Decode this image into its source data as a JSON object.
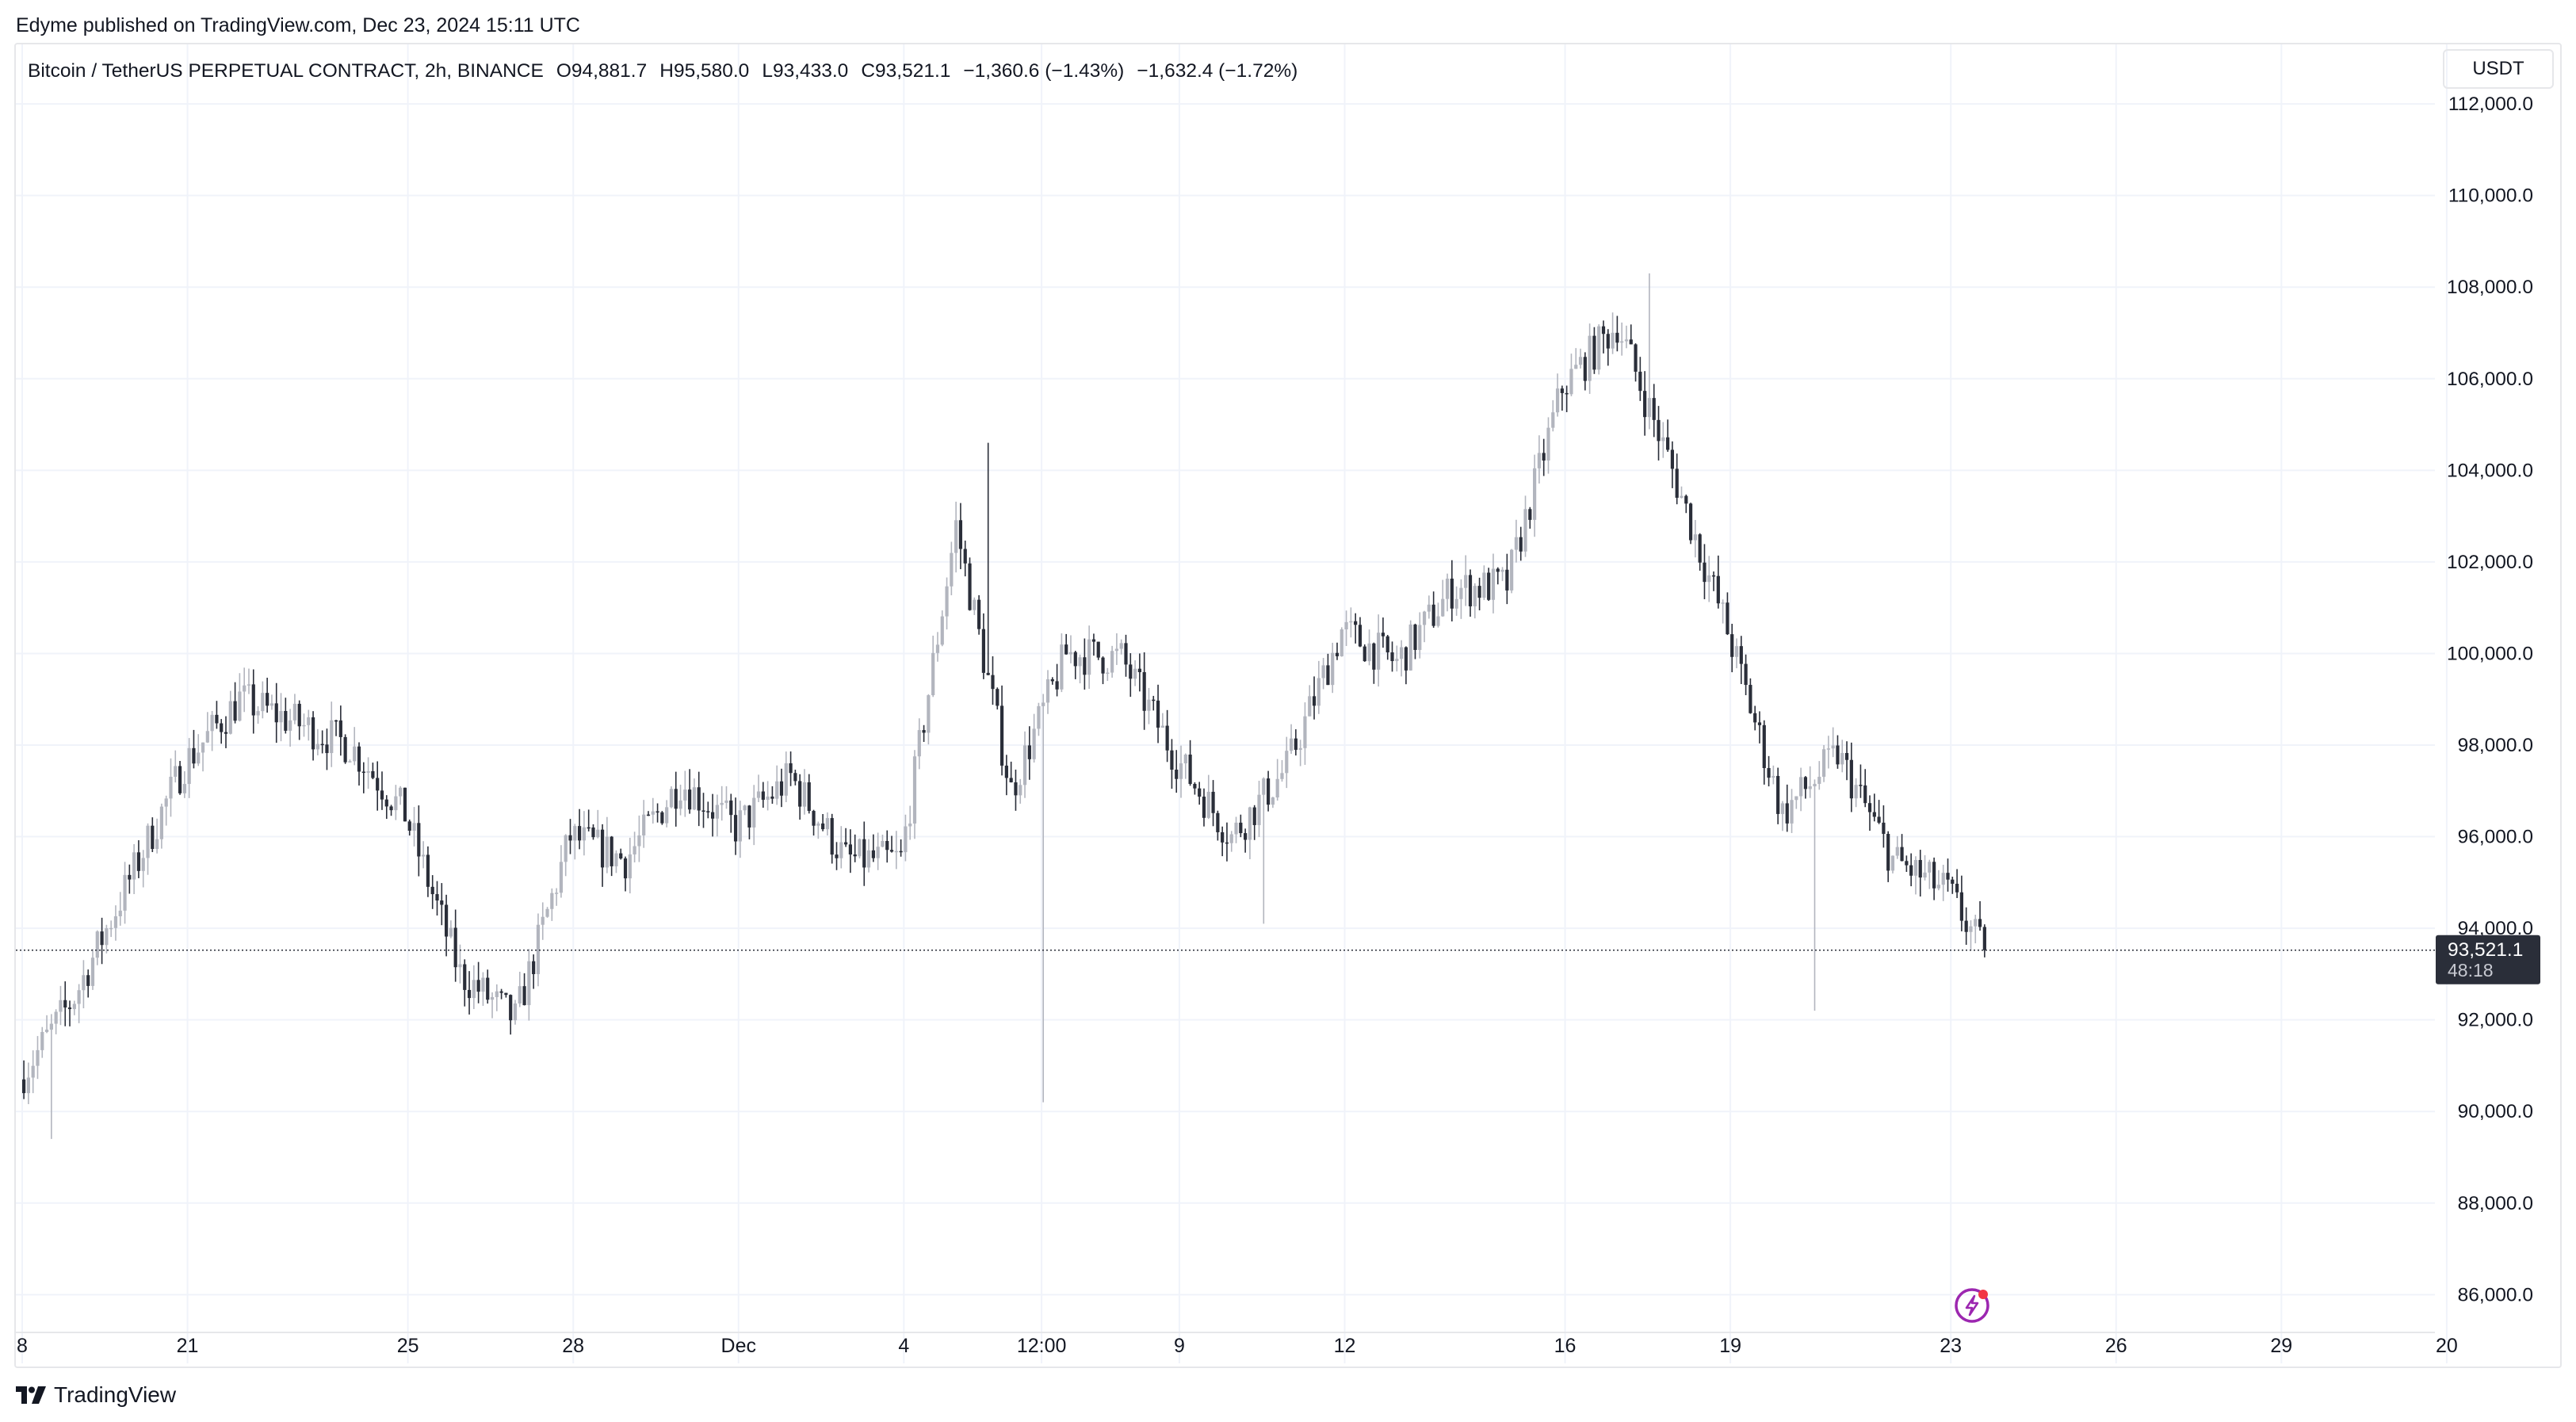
{
  "header": {
    "publisher": "Edyme published on TradingView.com, Dec 23, 2024 15:11 UTC",
    "currency": "USDT"
  },
  "legend": {
    "symbol": "Bitcoin / TetherUS PERPETUAL CONTRACT, 2h, BINANCE",
    "open": "O94,881.7",
    "high": "H95,580.0",
    "low": "L93,433.0",
    "close": "C93,521.1",
    "change": "−1,360.6 (−1.43%)",
    "change2": "−1,632.4 (−1.72%)"
  },
  "footer": {
    "brand": "TradingView"
  },
  "colors": {
    "up_candle": "#b2b5be",
    "down_candle": "#2a2e39",
    "grid": "#f0f3fa",
    "price_label_bg": "#2a2e39",
    "alert_icon": "#9c27b0",
    "alert_dot": "#f23645"
  },
  "chart_data": {
    "type": "candlestick",
    "ylim": [
      84500,
      113300
    ],
    "y_ticks": [
      "112,000.0",
      "110,000.0",
      "108,000.0",
      "106,000.0",
      "104,000.0",
      "102,000.0",
      "100,000.0",
      "98,000.0",
      "96,000.0",
      "94,000.0",
      "92,000.0",
      "90,000.0",
      "88,000.0",
      "86,000.0"
    ],
    "y_tick_values": [
      112000,
      110000,
      108000,
      106000,
      104000,
      102000,
      100000,
      98000,
      96000,
      94000,
      92000,
      90000,
      88000,
      86000
    ],
    "x_ticks": [
      "8",
      "21",
      "25",
      "28",
      "Dec",
      "4",
      "12:00",
      "9",
      "12",
      "16",
      "19",
      "23",
      "26",
      "29",
      "20"
    ],
    "x_tick_dates": [
      "2024-11-18",
      "2024-11-21",
      "2024-11-25",
      "2024-11-28",
      "2024-12-01",
      "2024-12-04",
      "2024-12-06 12:00",
      "2024-12-09",
      "2024-12-12",
      "2024-12-16",
      "2024-12-19",
      "2024-12-23",
      "2024-12-26",
      "2024-12-29",
      "2025-01-01"
    ],
    "x_tick_labels_shown_for": "start of each listed day",
    "last_price": "93,521.1",
    "last_price_value": 93521.1,
    "countdown": "48:18",
    "key_points": [
      {
        "date": "2024-11-18",
        "price": 90700
      },
      {
        "date": "2024-11-19",
        "price": 92500
      },
      {
        "date": "2024-11-21",
        "price": 97600
      },
      {
        "date": "2024-11-22",
        "price": 99000
      },
      {
        "date": "2024-11-24",
        "price": 98000
      },
      {
        "date": "2024-11-25",
        "price": 96500
      },
      {
        "date": "2024-11-26",
        "price": 93000
      },
      {
        "date": "2024-11-27",
        "price": 92000
      },
      {
        "date": "2024-11-28",
        "price": 96000
      },
      {
        "date": "2024-11-29",
        "price": 95500
      },
      {
        "date": "2024-11-30",
        "price": 97200
      },
      {
        "date": "2024-12-01",
        "price": 96200
      },
      {
        "date": "2024-12-02",
        "price": 97300
      },
      {
        "date": "2024-12-03",
        "price": 95500
      },
      {
        "date": "2024-12-04",
        "price": 95500
      },
      {
        "date": "2024-12-05",
        "price": 102800
      },
      {
        "date": "2024-12-06",
        "price": 97000
      },
      {
        "date": "2024-12-07",
        "price": 100000
      },
      {
        "date": "2024-12-08",
        "price": 99900
      },
      {
        "date": "2024-12-09",
        "price": 97700
      },
      {
        "date": "2024-12-10",
        "price": 96000
      },
      {
        "date": "2024-12-11",
        "price": 97500
      },
      {
        "date": "2024-12-12",
        "price": 100500
      },
      {
        "date": "2024-12-13",
        "price": 99800
      },
      {
        "date": "2024-12-14",
        "price": 101400
      },
      {
        "date": "2024-12-15",
        "price": 101500
      },
      {
        "date": "2024-12-16",
        "price": 105800
      },
      {
        "date": "2024-12-17",
        "price": 107200
      },
      {
        "date": "2024-12-18",
        "price": 104000
      },
      {
        "date": "2024-12-19",
        "price": 100500
      },
      {
        "date": "2024-12-20",
        "price": 96500
      },
      {
        "date": "2024-12-21",
        "price": 97800
      },
      {
        "date": "2024-12-22",
        "price": 95500
      },
      {
        "date": "2024-12-23",
        "price": 94800
      },
      {
        "date": "2024-12-23 15:11",
        "price": 93521.1
      }
    ],
    "extremes": [
      {
        "date": "2024-11-18",
        "low": 89400
      },
      {
        "date": "2024-12-05",
        "high": 104600
      },
      {
        "date": "2024-12-06",
        "low": 90200
      },
      {
        "date": "2024-12-10",
        "low": 94100
      },
      {
        "date": "2024-12-17",
        "high": 108300
      },
      {
        "date": "2024-12-20",
        "low": 92200
      }
    ],
    "grid": true
  }
}
